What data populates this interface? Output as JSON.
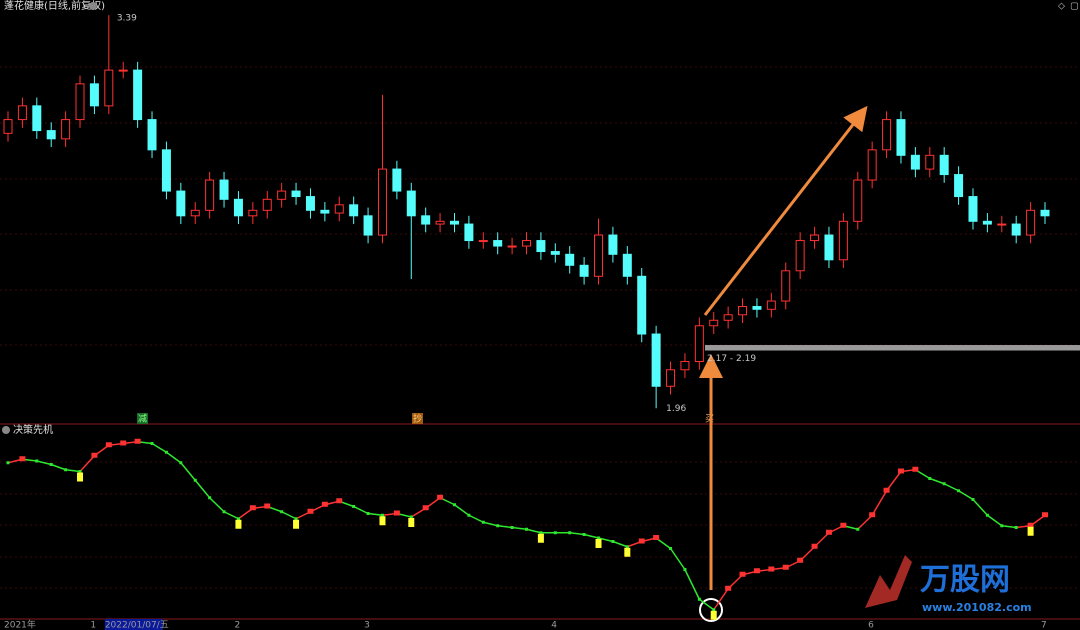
{
  "chart_data": {
    "type": "candlestick",
    "title": "蓬花健康(日线,前复权)",
    "indicator_title": "决策先机",
    "up_color": "#ff3232",
    "down_color": "#54fcfc",
    "ylim": [
      1.91,
      3.445
    ],
    "open": [
      2.96,
      3.01,
      3.06,
      2.97,
      2.94,
      3.01,
      3.14,
      3.06,
      3.19,
      3.19,
      3.01,
      2.9,
      2.75,
      2.66,
      2.68,
      2.79,
      2.72,
      2.66,
      2.68,
      2.72,
      2.75,
      2.73,
      2.68,
      2.67,
      2.7,
      2.66,
      2.59,
      2.83,
      2.75,
      2.66,
      2.63,
      2.64,
      2.63,
      2.57,
      2.57,
      2.55,
      2.55,
      2.57,
      2.53,
      2.52,
      2.48,
      2.44,
      2.59,
      2.52,
      2.44,
      2.23,
      2.04,
      2.1,
      2.13,
      2.26,
      2.28,
      2.3,
      2.33,
      2.32,
      2.35,
      2.46,
      2.57,
      2.59,
      2.5,
      2.64,
      2.79,
      2.9,
      3.01,
      2.88,
      2.83,
      2.88,
      2.81,
      2.73,
      2.64,
      2.63,
      2.63,
      2.59,
      2.68
    ],
    "high": [
      3.04,
      3.09,
      3.09,
      3.0,
      3.04,
      3.17,
      3.17,
      3.39,
      3.22,
      3.22,
      3.04,
      2.93,
      2.78,
      2.71,
      2.82,
      2.82,
      2.75,
      2.71,
      2.75,
      2.78,
      2.78,
      2.76,
      2.71,
      2.73,
      2.73,
      2.69,
      3.1,
      2.86,
      2.78,
      2.69,
      2.67,
      2.67,
      2.66,
      2.6,
      2.6,
      2.58,
      2.6,
      2.6,
      2.56,
      2.55,
      2.51,
      2.65,
      2.62,
      2.55,
      2.47,
      2.26,
      2.13,
      2.16,
      2.29,
      2.31,
      2.33,
      2.36,
      2.36,
      2.38,
      2.49,
      2.6,
      2.62,
      2.62,
      2.67,
      2.82,
      2.93,
      3.04,
      3.04,
      2.91,
      2.91,
      2.91,
      2.84,
      2.76,
      2.67,
      2.66,
      2.66,
      2.71,
      2.71
    ],
    "low": [
      2.93,
      2.98,
      2.94,
      2.91,
      2.91,
      2.98,
      3.03,
      3.03,
      3.16,
      2.98,
      2.87,
      2.72,
      2.63,
      2.63,
      2.65,
      2.69,
      2.63,
      2.63,
      2.65,
      2.69,
      2.7,
      2.65,
      2.64,
      2.64,
      2.63,
      2.56,
      2.56,
      2.72,
      2.43,
      2.6,
      2.6,
      2.6,
      2.54,
      2.54,
      2.52,
      2.52,
      2.52,
      2.5,
      2.49,
      2.45,
      2.41,
      2.41,
      2.49,
      2.41,
      2.2,
      1.96,
      2.01,
      2.07,
      2.1,
      2.23,
      2.25,
      2.27,
      2.29,
      2.29,
      2.32,
      2.43,
      2.54,
      2.47,
      2.47,
      2.61,
      2.76,
      2.87,
      2.85,
      2.8,
      2.8,
      2.78,
      2.7,
      2.61,
      2.6,
      2.6,
      2.56,
      2.56,
      2.63
    ],
    "close": [
      3.01,
      3.06,
      2.97,
      2.94,
      3.01,
      3.14,
      3.06,
      3.19,
      3.19,
      3.01,
      2.9,
      2.75,
      2.66,
      2.68,
      2.79,
      2.72,
      2.66,
      2.68,
      2.72,
      2.75,
      2.73,
      2.68,
      2.67,
      2.7,
      2.66,
      2.59,
      2.83,
      2.75,
      2.66,
      2.63,
      2.64,
      2.63,
      2.57,
      2.57,
      2.55,
      2.55,
      2.57,
      2.53,
      2.52,
      2.48,
      2.44,
      2.59,
      2.52,
      2.44,
      2.23,
      2.04,
      2.1,
      2.13,
      2.26,
      2.28,
      2.3,
      2.33,
      2.32,
      2.35,
      2.46,
      2.57,
      2.59,
      2.5,
      2.64,
      2.79,
      2.9,
      3.01,
      2.88,
      2.83,
      2.88,
      2.81,
      2.73,
      2.64,
      2.63,
      2.63,
      2.59,
      2.68,
      2.66
    ],
    "categories": [
      "2021年",
      null,
      null,
      null,
      null,
      null,
      "1",
      "2022/01/07/五",
      null,
      null,
      null,
      null,
      null,
      null,
      null,
      null,
      "2",
      null,
      null,
      null,
      null,
      null,
      null,
      null,
      null,
      "3",
      null,
      null,
      null,
      null,
      null,
      null,
      null,
      null,
      null,
      null,
      null,
      null,
      "4",
      null,
      null,
      null,
      null,
      null,
      null,
      null,
      null,
      null,
      null,
      null,
      null,
      null,
      null,
      null,
      null,
      null,
      null,
      null,
      null,
      null,
      "6",
      null,
      null,
      null,
      null,
      null,
      null,
      null,
      null,
      null,
      null,
      null,
      "7"
    ],
    "range_line": {
      "values": [
        2.17,
        2.19
      ],
      "label": "2.17 - 2.19",
      "color": "#9a9a9a"
    },
    "tags": [
      "减",
      "抄",
      "买"
    ],
    "indicator": {
      "ylim": [
        0,
        100
      ],
      "signal_color": "#ffff33",
      "values": [
        87,
        89,
        88,
        86,
        83,
        82,
        91,
        97,
        98,
        99,
        98,
        93,
        87,
        77,
        67,
        59,
        55,
        61,
        62,
        59,
        55,
        59,
        63,
        65,
        62,
        58,
        57,
        58,
        56,
        61,
        67,
        63,
        57,
        53,
        51,
        50,
        49,
        47,
        47,
        47,
        46,
        44,
        42,
        39,
        42,
        44,
        38,
        26,
        9,
        3,
        15,
        23,
        25,
        26,
        27,
        31,
        39,
        47,
        51,
        49,
        57,
        71,
        82,
        83,
        78,
        75,
        71,
        66,
        57,
        51,
        50,
        51,
        57
      ],
      "signals": [
        5,
        16,
        20,
        26,
        28,
        37,
        41,
        43,
        49,
        71
      ]
    },
    "watermark": {
      "name": "万股网",
      "url": "www.201082.com"
    }
  }
}
